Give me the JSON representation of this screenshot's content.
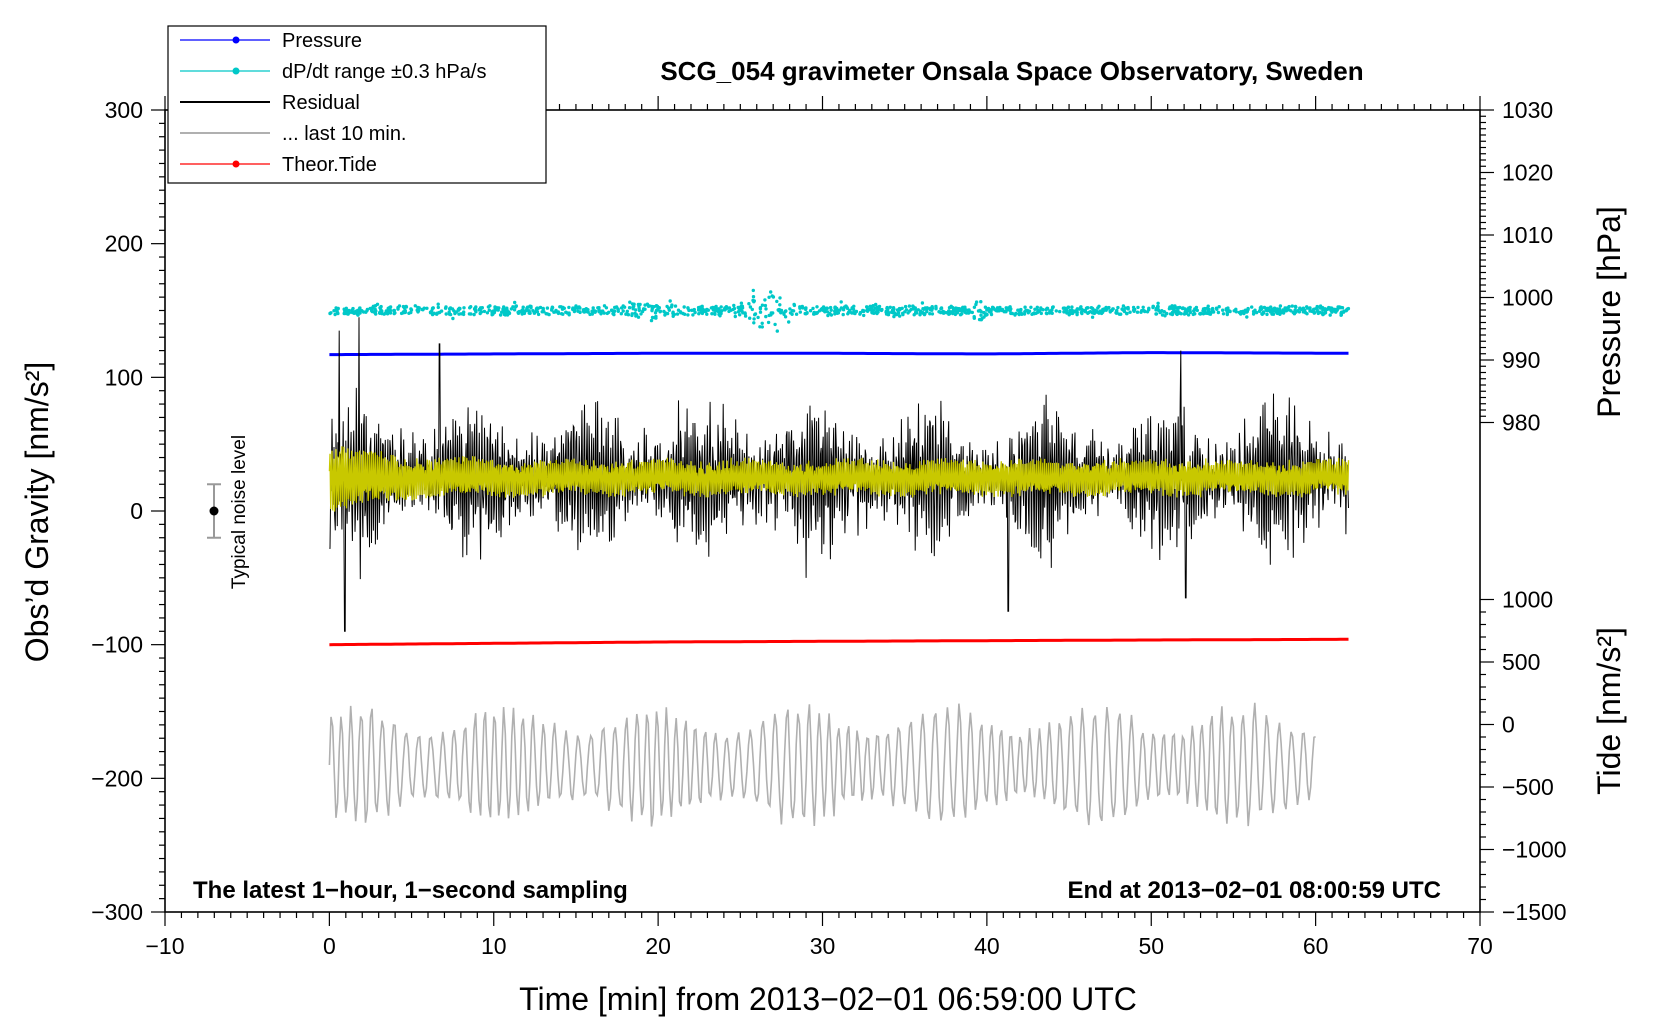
{
  "chart_data": {
    "type": "line",
    "title": "SCG_054 gravimeter Onsala Space Observatory, Sweden",
    "xlabel": "Time [min] from 2013−02−01 06:59:00 UTC",
    "ylabel_left": "Obs’d Gravity [nm/s²]",
    "ylabel_right_pressure": "Pressure [hPa]",
    "ylabel_right_tide": "Tide [nm/s²]",
    "xlim": [
      -10,
      70
    ],
    "ylim_left": [
      -300,
      300
    ],
    "x_ticks": [
      "−10",
      "0",
      "10",
      "20",
      "30",
      "40",
      "50",
      "60",
      "70"
    ],
    "y_left_ticks": [
      "300",
      "200",
      "100",
      "0",
      "−100",
      "−200",
      "−300"
    ],
    "pressure_ticks": [
      "1030",
      "1020",
      "1010",
      "1000",
      "990",
      "980"
    ],
    "tide_ticks": [
      "1000",
      "500",
      "0",
      "−500",
      "−1000",
      "−1500"
    ],
    "note_left": "The latest 1−hour, 1−second sampling",
    "note_right": "End at 2013−02−01 08:00:59 UTC",
    "noise_label": "Typical noise level",
    "noise_bar": {
      "center": 0,
      "half_range": 20
    },
    "legend": [
      {
        "label": "Pressure",
        "color": "#0000ff",
        "marker": true
      },
      {
        "label": "dP/dt range ±0.3 hPa/s",
        "color": "#00c8c8",
        "marker": true
      },
      {
        "label": "Residual",
        "color": "#000000",
        "marker": false
      },
      {
        "label": "... last 10 min.",
        "color": "#b0b0b0",
        "marker": false
      },
      {
        "label": "Theor.Tide",
        "color": "#ff0000",
        "marker": true
      }
    ],
    "series": [
      {
        "name": "Pressure",
        "color": "#0000ff",
        "x": [
          0,
          10,
          20,
          30,
          40,
          50,
          62
        ],
        "values": [
          117,
          117.5,
          118,
          118,
          117.5,
          118.5,
          118
        ]
      },
      {
        "name": "dP/dt range ±0.3 hPa/s",
        "color": "#00c8c8",
        "x": [
          0,
          62
        ],
        "values": [
          150,
          150
        ]
      },
      {
        "name": "Residual",
        "color": "#000000",
        "x": [
          0,
          62
        ],
        "values": [
          25,
          25
        ],
        "amplitude_approx": 80
      },
      {
        "name": "Residual (smoothed)",
        "color": "#c8c800",
        "x": [
          0,
          62
        ],
        "values": [
          25,
          25
        ],
        "amplitude_approx": 20
      },
      {
        "name": "Theor.Tide",
        "color": "#ff0000",
        "x": [
          0,
          10,
          20,
          30,
          40,
          50,
          62
        ],
        "values": [
          -100,
          -99,
          -98,
          -97.5,
          -97,
          -96.5,
          -96
        ]
      },
      {
        "name": "... last 10 min.",
        "color": "#b0b0b0",
        "x": [
          0,
          60
        ],
        "values": [
          -190,
          -190
        ],
        "amplitude_approx": 45
      }
    ]
  }
}
